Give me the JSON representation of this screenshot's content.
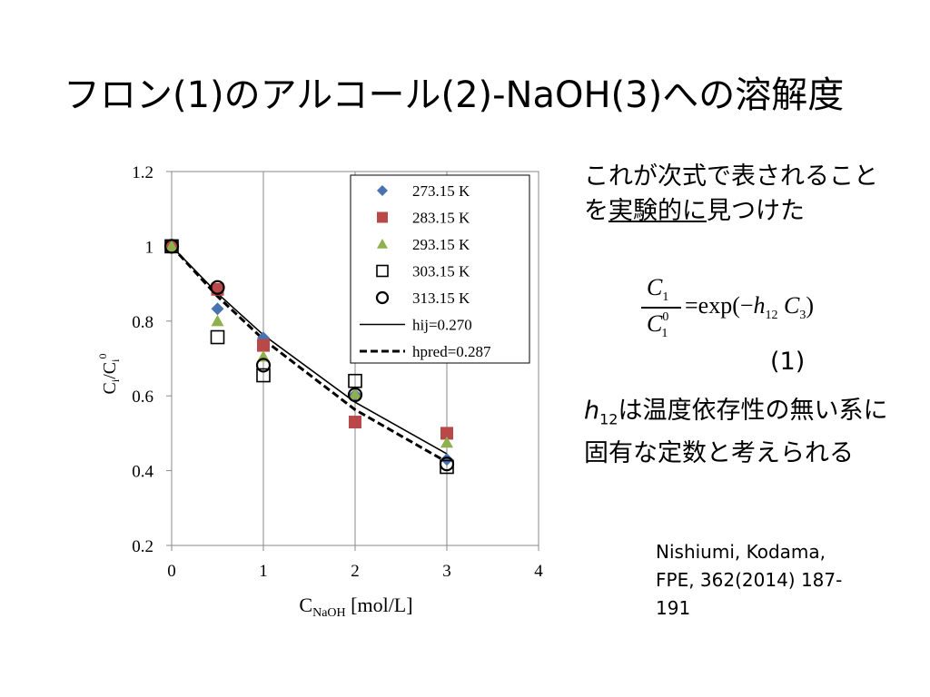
{
  "slide": {
    "title": "フロン(1)のアルコール(2)-NaOH(3)への溶解度"
  },
  "explanation": {
    "line_part1": "これが次式で表される",
    "line_part2": "ことを",
    "underlined": "実験的に",
    "line_part3": "見つけた"
  },
  "formula": {
    "numerator_var": "C",
    "numerator_sub": "1",
    "denominator_var": "C",
    "denominator_sup": "0",
    "denominator_sub": "1",
    "rhs_prefix": "=exp(−",
    "h_var": "h",
    "h_sub": "12",
    "c_var": "C",
    "c_sub": "3",
    "rhs_suffix": ")",
    "eq_number": "(1)"
  },
  "note": {
    "h_var": "h",
    "h_sub": "12",
    "text": "は温度依存性の無い系に固有な定数と考えられる"
  },
  "reference": {
    "line1": "Nishiumi, Kodama,",
    "line2": "FPE, 362(2014) 187-",
    "line3": "191"
  },
  "chart_data": {
    "type": "scatter",
    "xlabel_main": "C",
    "xlabel_sub": "NaOH",
    "xlabel_unit": " [mol/L]",
    "ylabel_main": "C",
    "ylabel_sub": "i",
    "ylabel_sep": "/C",
    "ylabel_sub2": "i",
    "ylabel_sup": "0",
    "xlim": [
      0,
      4
    ],
    "ylim": [
      0.2,
      1.2
    ],
    "x_ticks": [
      "0",
      "1",
      "2",
      "3",
      "4"
    ],
    "y_ticks": [
      "0.2",
      "0.4",
      "0.6",
      "0.8",
      "1",
      "1.2"
    ],
    "grid": "vertical",
    "legend_position": "top-right",
    "series": [
      {
        "name": "273.15 K",
        "marker": "diamond",
        "color": "#4a72b0",
        "x": [
          0,
          0.5,
          1,
          2,
          3
        ],
        "y": [
          1.0,
          0.833,
          0.755,
          0.603,
          0.43
        ]
      },
      {
        "name": "283.15 K",
        "marker": "square",
        "color": "#b94848",
        "x": [
          0,
          0.5,
          1,
          2,
          3
        ],
        "y": [
          1.0,
          0.885,
          0.735,
          0.53,
          0.5
        ]
      },
      {
        "name": "293.15 K",
        "marker": "triangle",
        "color": "#8fb04e",
        "x": [
          0,
          0.5,
          1,
          2,
          3
        ],
        "y": [
          1.0,
          0.8,
          0.705,
          0.605,
          0.475
        ]
      },
      {
        "name": "303.15 K",
        "marker": "open-square",
        "color": "#000000",
        "x": [
          0,
          0.5,
          1,
          2,
          3
        ],
        "y": [
          1.0,
          0.757,
          0.655,
          0.64,
          0.41
        ]
      },
      {
        "name": "313.15 K",
        "marker": "open-circle",
        "color": "#000000",
        "x": [
          0,
          0.5,
          1,
          2,
          3
        ],
        "y": [
          1.0,
          0.89,
          0.682,
          0.603,
          0.418
        ]
      }
    ],
    "lines": [
      {
        "name": "hij=0.270",
        "style": "solid",
        "color": "#000000",
        "x": [
          0,
          0.5,
          1,
          2,
          3
        ],
        "y": [
          1.0,
          0.874,
          0.763,
          0.583,
          0.445
        ]
      },
      {
        "name": "hpred=0.287",
        "style": "dashed",
        "color": "#000000",
        "x": [
          0,
          0.5,
          1,
          2,
          3
        ],
        "y": [
          1.0,
          0.866,
          0.751,
          0.563,
          0.423
        ]
      }
    ]
  }
}
